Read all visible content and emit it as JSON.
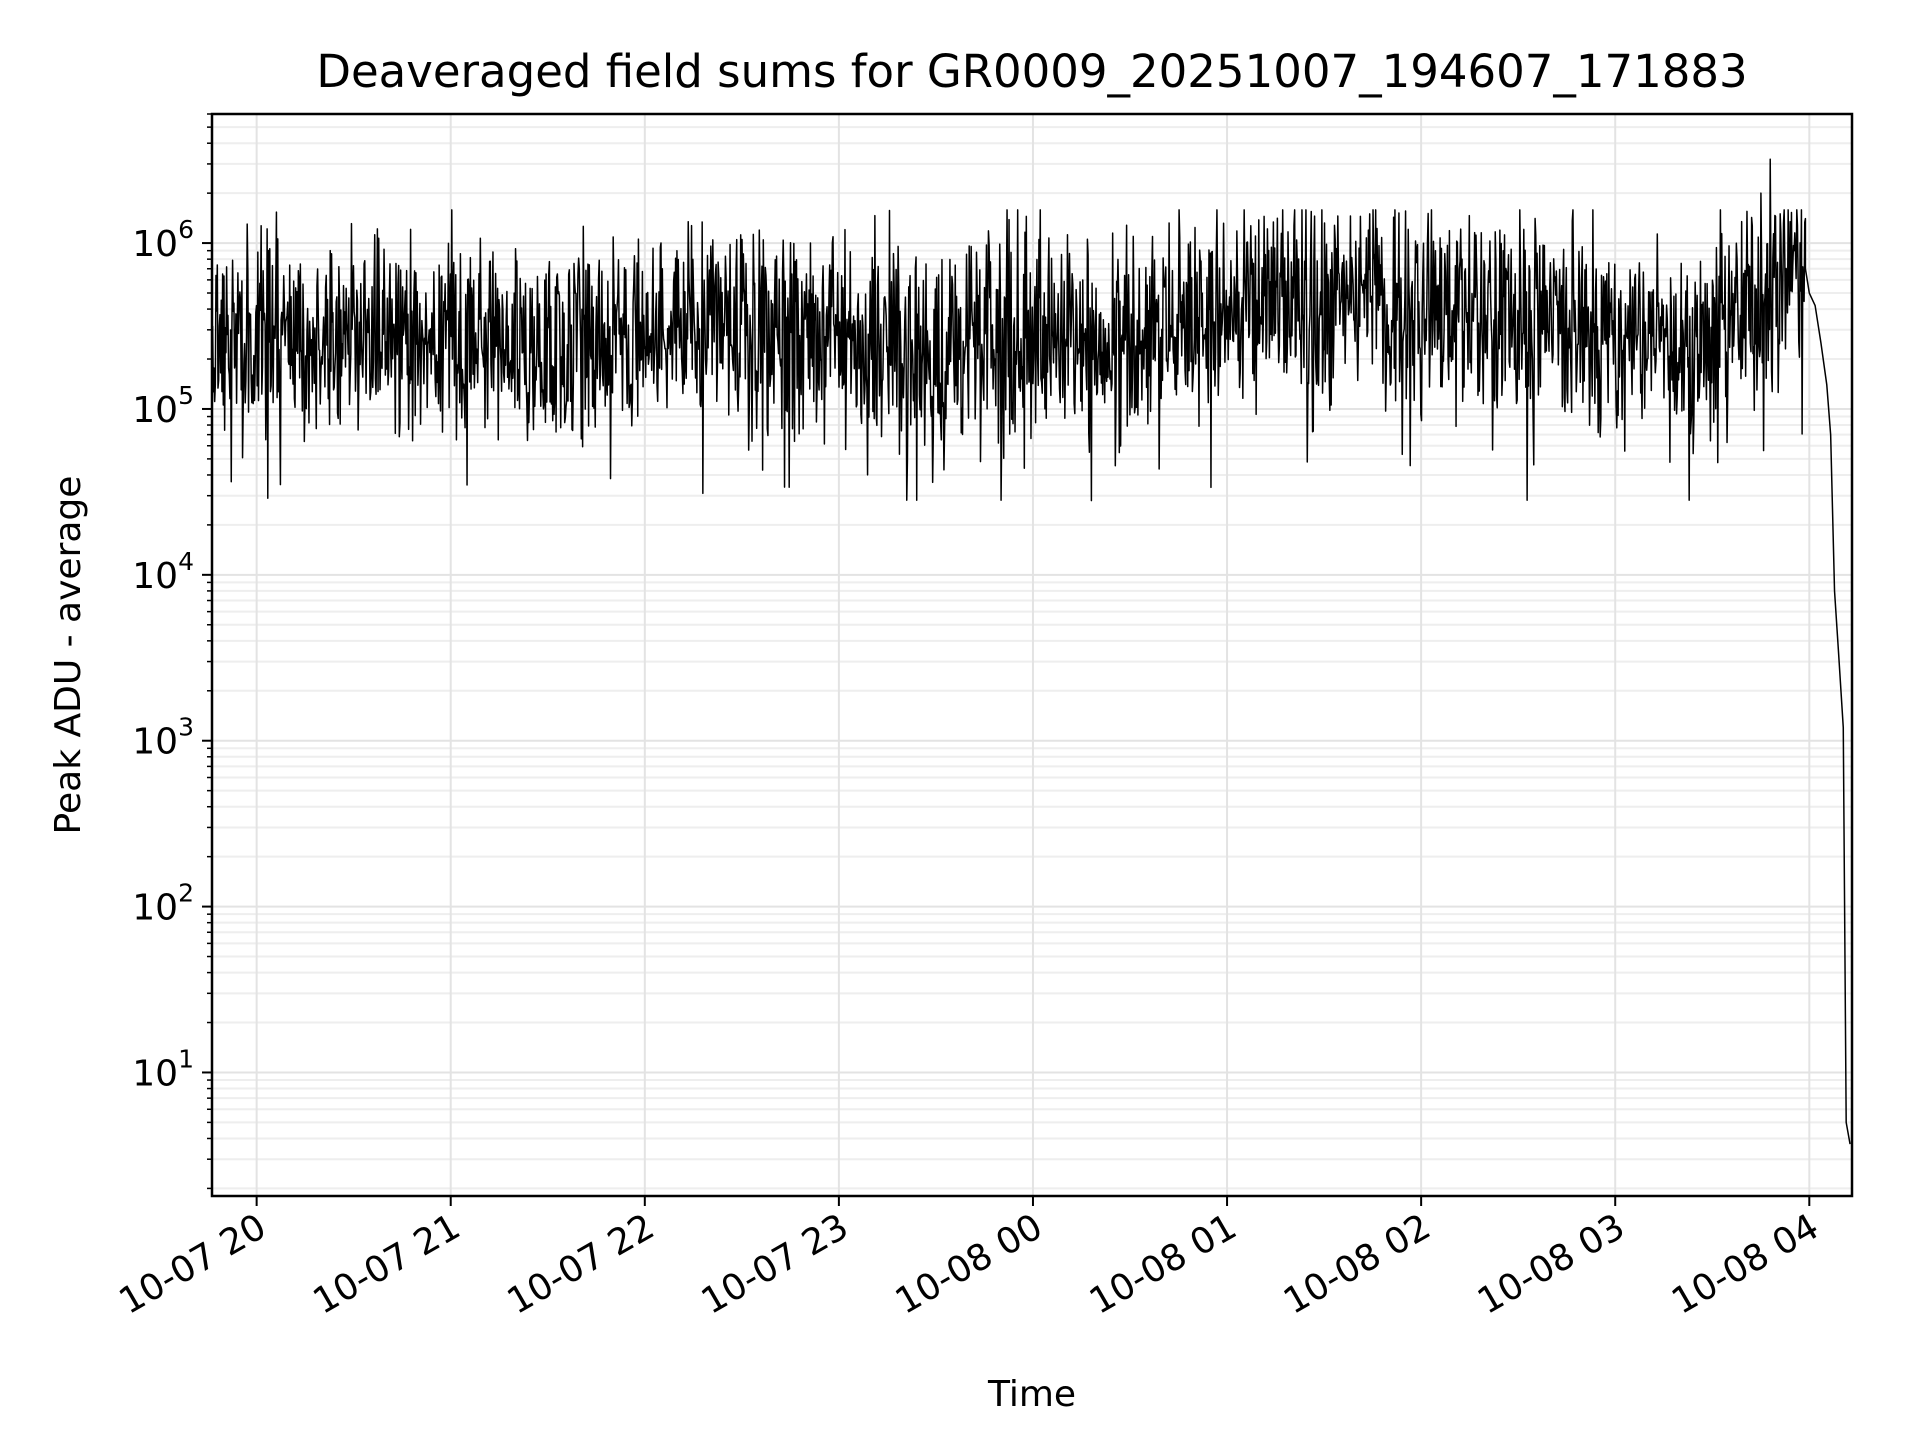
{
  "chart_data": {
    "type": "line",
    "title": "Deaveraged field sums for GR0009_20251007_194607_171883",
    "xlabel": "Time",
    "ylabel": "Peak ADU - average",
    "y_scale": "log",
    "ylim": [
      1.8,
      6000000
    ],
    "xlim_hours": [
      19.77,
      28.22
    ],
    "grid": true,
    "x_ticks": [
      {
        "hour": 20,
        "label": "10-07 20"
      },
      {
        "hour": 21,
        "label": "10-07 21"
      },
      {
        "hour": 22,
        "label": "10-07 22"
      },
      {
        "hour": 23,
        "label": "10-07 23"
      },
      {
        "hour": 24,
        "label": "10-08 00"
      },
      {
        "hour": 25,
        "label": "10-08 01"
      },
      {
        "hour": 26,
        "label": "10-08 02"
      },
      {
        "hour": 27,
        "label": "10-08 03"
      },
      {
        "hour": 28,
        "label": "10-08 04"
      }
    ],
    "y_ticks": [
      {
        "exp": 1,
        "base": "10",
        "sup": "1"
      },
      {
        "exp": 2,
        "base": "10",
        "sup": "2"
      },
      {
        "exp": 3,
        "base": "10",
        "sup": "3"
      },
      {
        "exp": 4,
        "base": "10",
        "sup": "4"
      },
      {
        "exp": 5,
        "base": "10",
        "sup": "5"
      },
      {
        "exp": 6,
        "base": "10",
        "sup": "6"
      }
    ],
    "series": [
      {
        "name": "deaveraged field sums",
        "color": "#000000",
        "noisy_segment": {
          "x_start_hour": 19.77,
          "x_end_hour": 27.98,
          "samples": 2400,
          "baseline_log10": [
            [
              19.77,
              5.45
            ],
            [
              20.5,
              5.45
            ],
            [
              21.0,
              5.35
            ],
            [
              21.5,
              5.45
            ],
            [
              22.0,
              5.5
            ],
            [
              22.5,
              5.45
            ],
            [
              23.0,
              5.45
            ],
            [
              23.5,
              5.35
            ],
            [
              24.0,
              5.45
            ],
            [
              24.5,
              5.5
            ],
            [
              25.0,
              5.6
            ],
            [
              25.5,
              5.65
            ],
            [
              26.0,
              5.65
            ],
            [
              26.5,
              5.55
            ],
            [
              27.0,
              5.45
            ],
            [
              27.5,
              5.45
            ],
            [
              27.98,
              5.85
            ]
          ],
          "range_log10": [
            4.45,
            6.2
          ],
          "spikes": [
            {
              "hour": 27.8,
              "value": 3200000
            },
            {
              "hour": 27.75,
              "value": 2000000
            },
            {
              "hour": 27.85,
              "value": 1500000
            },
            {
              "hour": 24.3,
              "value": 28000
            },
            {
              "hour": 22.3,
              "value": 31000
            },
            {
              "hour": 19.95,
              "value": 1300000
            }
          ]
        },
        "tail": [
          {
            "hour": 27.98,
            "value": 700000
          },
          {
            "hour": 28.0,
            "value": 500000
          },
          {
            "hour": 28.03,
            "value": 420000
          },
          {
            "hour": 28.06,
            "value": 250000
          },
          {
            "hour": 28.09,
            "value": 140000
          },
          {
            "hour": 28.11,
            "value": 70000
          },
          {
            "hour": 28.13,
            "value": 8000
          },
          {
            "hour": 28.15,
            "value": 3500
          },
          {
            "hour": 28.175,
            "value": 1200
          },
          {
            "hour": 28.19,
            "value": 5
          },
          {
            "hour": 28.21,
            "value": 3.7
          }
        ]
      }
    ]
  }
}
